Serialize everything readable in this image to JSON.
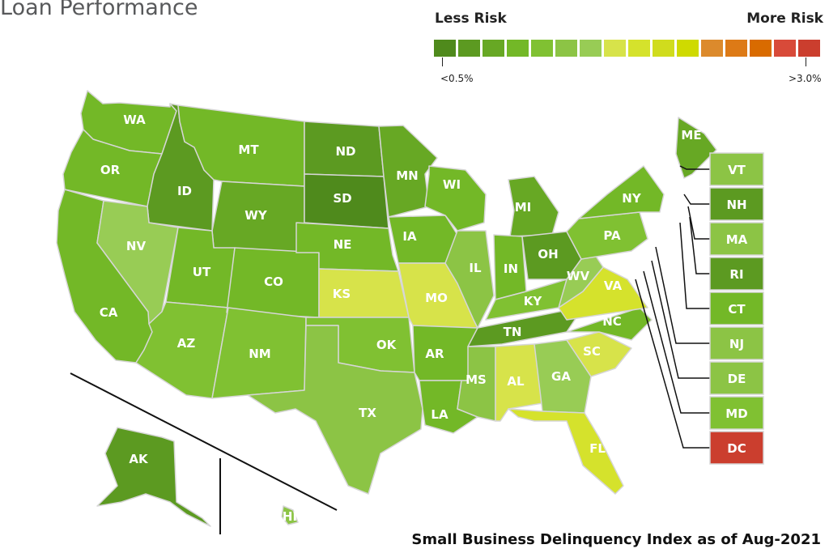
{
  "title": "Loan Performance",
  "legend": {
    "less_label": "Less Risk",
    "more_label": "More Risk",
    "min_label": "<0.5%",
    "max_label": ">3.0%",
    "colors": [
      "#4f8a1c",
      "#5c9a21",
      "#67a824",
      "#73b827",
      "#80c132",
      "#8cc445",
      "#98cc55",
      "#d7e34a",
      "#d5e22c",
      "#d0dc1d",
      "#cfda00",
      "#dc8a2c",
      "#dd7a16",
      "#d96b00",
      "#d84a39",
      "#cb3e2e"
    ]
  },
  "footer": "Small Business Delinquency Index as of Aug-2021",
  "states": {
    "WA": {
      "label": "WA",
      "color": "#73b827"
    },
    "OR": {
      "label": "OR",
      "color": "#73b827"
    },
    "CA": {
      "label": "CA",
      "color": "#73b827"
    },
    "ID": {
      "label": "ID",
      "color": "#5c9a21"
    },
    "NV": {
      "label": "NV",
      "color": "#98cc55"
    },
    "MT": {
      "label": "MT",
      "color": "#73b827"
    },
    "WY": {
      "label": "WY",
      "color": "#67a824"
    },
    "UT": {
      "label": "UT",
      "color": "#73b827"
    },
    "AZ": {
      "label": "AZ",
      "color": "#80c132"
    },
    "CO": {
      "label": "CO",
      "color": "#73b827"
    },
    "NM": {
      "label": "NM",
      "color": "#80c132"
    },
    "ND": {
      "label": "ND",
      "color": "#5c9a21"
    },
    "SD": {
      "label": "SD",
      "color": "#4f8a1c"
    },
    "NE": {
      "label": "NE",
      "color": "#73b827"
    },
    "KS": {
      "label": "KS",
      "color": "#d7e34a"
    },
    "OK": {
      "label": "OK",
      "color": "#80c132"
    },
    "TX": {
      "label": "TX",
      "color": "#8cc445"
    },
    "MN": {
      "label": "MN",
      "color": "#67a824"
    },
    "IA": {
      "label": "IA",
      "color": "#73b827"
    },
    "MO": {
      "label": "MO",
      "color": "#d7e34a"
    },
    "AR": {
      "label": "AR",
      "color": "#73b827"
    },
    "LA": {
      "label": "LA",
      "color": "#73b827"
    },
    "WI": {
      "label": "WI",
      "color": "#73b827"
    },
    "IL": {
      "label": "IL",
      "color": "#8cc445"
    },
    "MI": {
      "label": "MI",
      "color": "#67a824"
    },
    "IN": {
      "label": "IN",
      "color": "#73b827"
    },
    "OH": {
      "label": "OH",
      "color": "#5c9a21"
    },
    "KY": {
      "label": "KY",
      "color": "#80c132"
    },
    "TN": {
      "label": "TN",
      "color": "#5c9a21"
    },
    "MS": {
      "label": "MS",
      "color": "#8cc445"
    },
    "AL": {
      "label": "AL",
      "color": "#d7e34a"
    },
    "GA": {
      "label": "GA",
      "color": "#98cc55"
    },
    "FL": {
      "label": "FL",
      "color": "#d5e22c"
    },
    "SC": {
      "label": "SC",
      "color": "#d7e34a"
    },
    "NC": {
      "label": "NC",
      "color": "#73b827"
    },
    "VA": {
      "label": "VA",
      "color": "#d5e22c"
    },
    "WV": {
      "label": "WV",
      "color": "#98cc55"
    },
    "PA": {
      "label": "PA",
      "color": "#80c132"
    },
    "NY": {
      "label": "NY",
      "color": "#73b827"
    },
    "ME": {
      "label": "ME",
      "color": "#67a824"
    },
    "AK": {
      "label": "AK",
      "color": "#5c9a21"
    },
    "HI": {
      "label": "HI",
      "color": "#8cc445"
    }
  },
  "small_states": [
    {
      "label": "VT",
      "color": "#8cc445"
    },
    {
      "label": "NH",
      "color": "#5c9a21"
    },
    {
      "label": "MA",
      "color": "#8cc445"
    },
    {
      "label": "RI",
      "color": "#5c9a21"
    },
    {
      "label": "CT",
      "color": "#73b827"
    },
    {
      "label": "NJ",
      "color": "#8cc445"
    },
    {
      "label": "DE",
      "color": "#8cc445"
    },
    {
      "label": "MD",
      "color": "#80c132"
    },
    {
      "label": "DC",
      "color": "#cb3e2e"
    }
  ]
}
